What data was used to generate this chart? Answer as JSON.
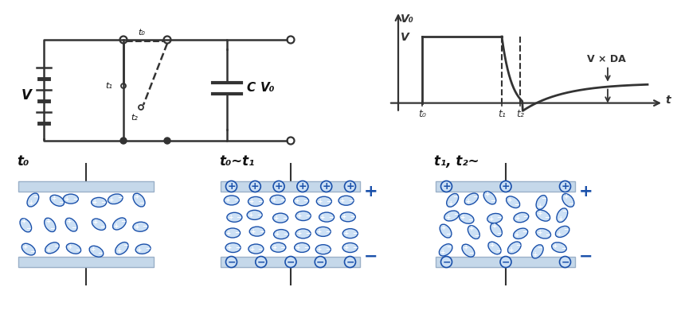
{
  "bg_color": "#ffffff",
  "gc": "#333333",
  "ic": "#1a50aa",
  "ifill": "#cce0f5",
  "pc": "#c5d8ea",
  "pec": "#9ab0c8",
  "lc": "#111111",
  "plus": "+",
  "minus": "−",
  "cap_t0": "t₀",
  "cap_t0t1": "t₀∼t₁",
  "cap_t1t2": "t₁, t₂∼",
  "graph_V0": "V₀",
  "graph_V": "V",
  "graph_VDA": "V × DA",
  "graph_t": "t",
  "graph_t0": "t₀",
  "graph_t1": "t₁",
  "graph_t2": "t₂",
  "circ_V": "V",
  "circ_C": "C",
  "circ_Vo": "V₀",
  "circ_t0": "t₀",
  "circ_t1": "t₁",
  "circ_t2": "t₂"
}
